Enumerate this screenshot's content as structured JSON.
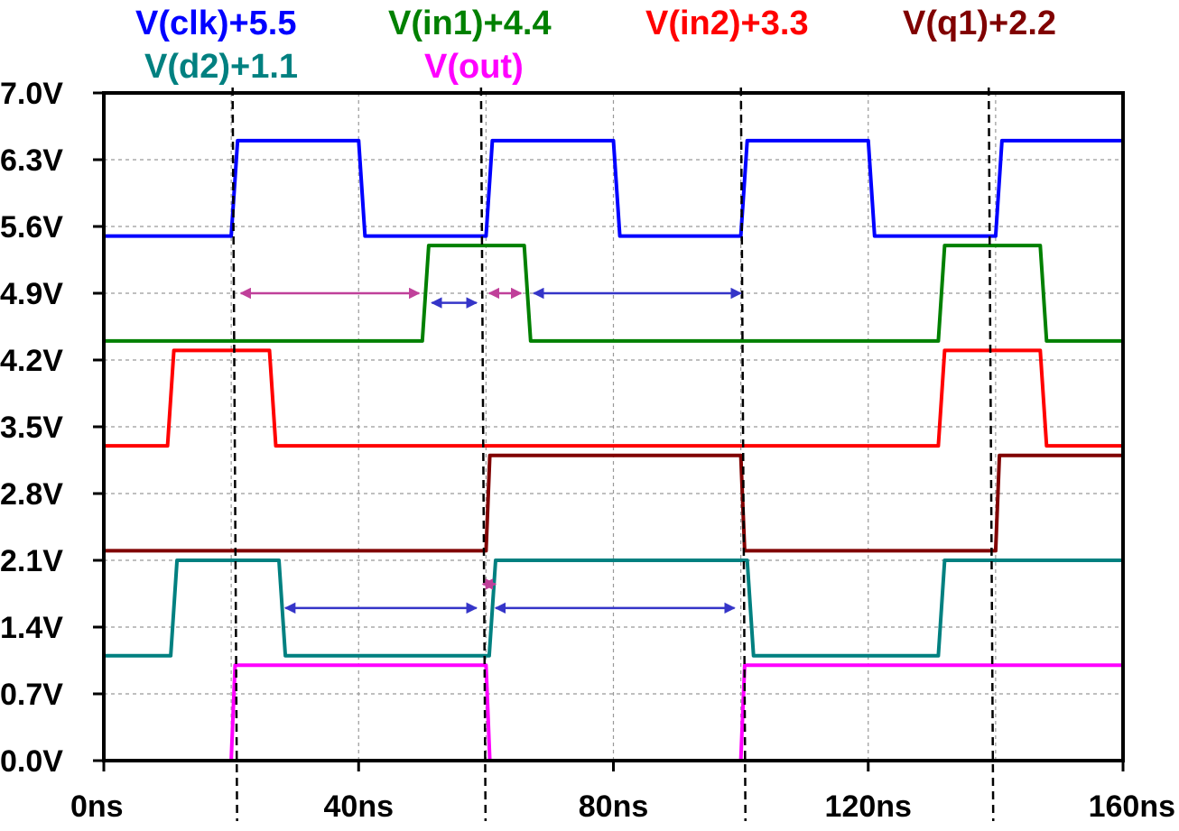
{
  "chart_data": {
    "type": "line",
    "title": "",
    "xlabel": "",
    "ylabel": "",
    "xlim": [
      0,
      160
    ],
    "ylim": [
      0.0,
      7.0
    ],
    "grid": true,
    "legend_position": "top",
    "x_ticks": [
      "0ns",
      "40ns",
      "80ns",
      "120ns",
      "160ns"
    ],
    "x_tick_values": [
      0,
      40,
      80,
      120,
      160
    ],
    "y_ticks": [
      "0.0V",
      "0.7V",
      "1.4V",
      "2.1V",
      "2.8V",
      "3.5V",
      "4.2V",
      "4.9V",
      "5.6V",
      "6.3V",
      "7.0V"
    ],
    "y_tick_values": [
      0.0,
      0.7,
      1.4,
      2.1,
      2.8,
      3.5,
      4.2,
      4.9,
      5.6,
      6.3,
      7.0
    ],
    "series": [
      {
        "name": "V(clk)+5.5",
        "color": "#0000ff",
        "x": [
          0,
          20,
          21,
          40,
          41,
          60,
          61,
          80,
          81,
          100,
          101,
          120,
          121,
          140,
          141,
          160
        ],
        "y": [
          5.5,
          5.5,
          6.5,
          6.5,
          5.5,
          5.5,
          6.5,
          6.5,
          5.5,
          5.5,
          6.5,
          6.5,
          5.5,
          5.5,
          6.5,
          6.5
        ]
      },
      {
        "name": "V(in1)+4.4",
        "color": "#008000",
        "x": [
          0,
          50,
          51,
          66,
          67,
          131,
          132,
          147,
          148,
          160
        ],
        "y": [
          4.4,
          4.4,
          5.4,
          5.4,
          4.4,
          4.4,
          5.4,
          5.4,
          4.4,
          4.4
        ]
      },
      {
        "name": "V(in2)+3.3",
        "color": "#ff0000",
        "x": [
          0,
          10,
          11,
          26,
          27,
          131,
          132,
          147,
          148,
          160
        ],
        "y": [
          3.3,
          3.3,
          4.3,
          4.3,
          3.3,
          3.3,
          4.3,
          4.3,
          3.3,
          3.3
        ]
      },
      {
        "name": "V(q1)+2.2",
        "color": "#800000",
        "x": [
          0,
          60,
          60.6,
          100,
          100.6,
          140,
          140.6,
          160
        ],
        "y": [
          2.2,
          2.2,
          3.2,
          3.2,
          2.2,
          2.2,
          3.2,
          3.2
        ]
      },
      {
        "name": "V(d2)+1.1",
        "color": "#008080",
        "x": [
          0,
          10.5,
          11.5,
          27.5,
          28.5,
          60.5,
          61.5,
          101,
          102,
          131,
          132,
          160
        ],
        "y": [
          1.1,
          1.1,
          2.1,
          2.1,
          1.1,
          1.1,
          2.1,
          2.1,
          1.1,
          1.1,
          2.1,
          2.1
        ]
      },
      {
        "name": "V(out)",
        "color": "#ff00ff",
        "x": [
          0,
          20,
          20.6,
          60,
          60.6,
          100,
          100.6,
          160
        ],
        "y": [
          0.0,
          0.0,
          1.0,
          1.0,
          0.0,
          0.0,
          1.0,
          1.0
        ]
      }
    ],
    "markers": [
      20.5,
      59.5,
      100.3,
      139.2
    ],
    "annotations": [
      {
        "x1": 21.5,
        "x2": 49.5,
        "y": 4.9,
        "color": "#c0409a"
      },
      {
        "x1": 51.5,
        "x2": 58.5,
        "y": 4.8,
        "color": "#3535c8"
      },
      {
        "x1": 60.5,
        "x2": 65.5,
        "y": 4.9,
        "color": "#c0409a"
      },
      {
        "x1": 67.5,
        "x2": 100,
        "y": 4.9,
        "color": "#3535c8"
      },
      {
        "x1": 28.5,
        "x2": 58.5,
        "y": 1.6,
        "color": "#3535c8"
      },
      {
        "x1": 59.5,
        "x2": 61.5,
        "y": 1.85,
        "color": "#c0409a"
      },
      {
        "x1": 61.5,
        "x2": 99,
        "y": 1.6,
        "color": "#3535c8"
      }
    ]
  }
}
